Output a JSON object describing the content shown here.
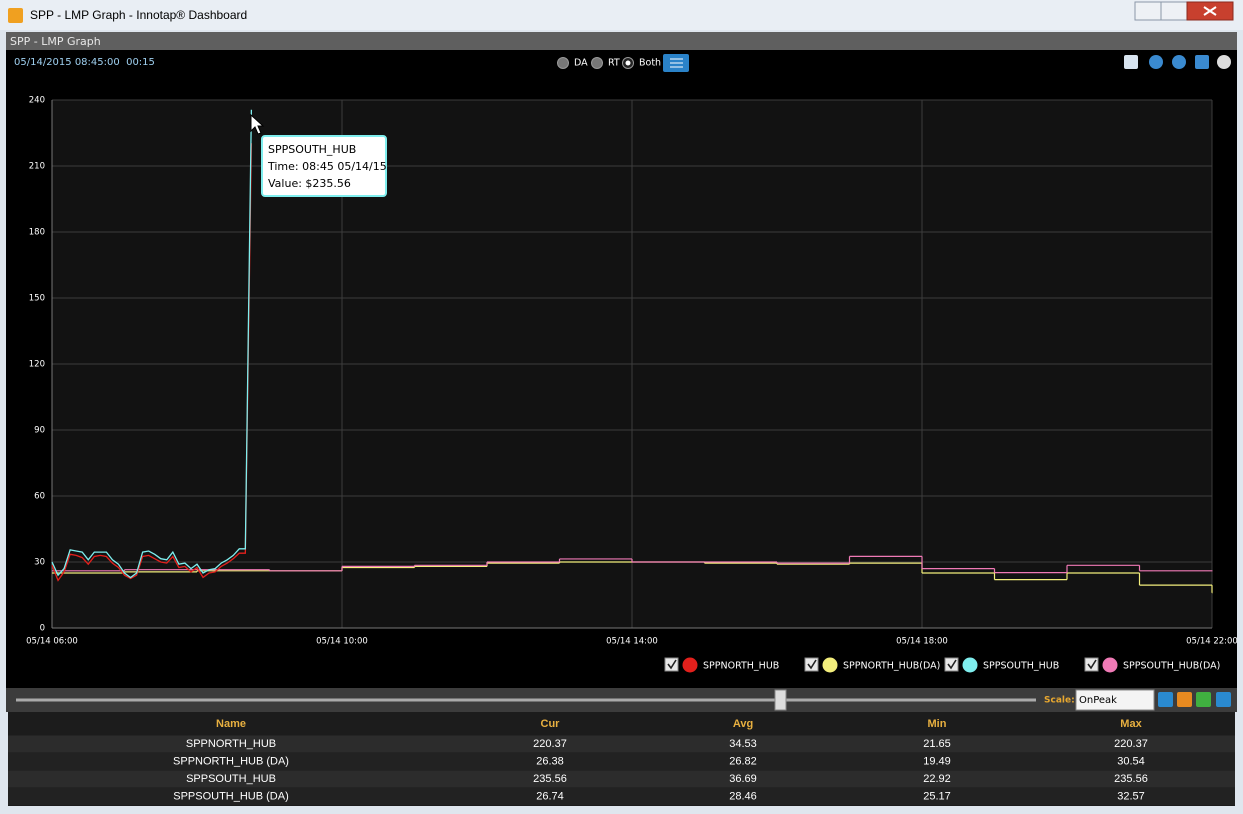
{
  "window": {
    "title": "SPP - LMP Graph - Innotap® Dashboard"
  },
  "panel": {
    "title": "SPP - LMP Graph",
    "timestamp": "05/14/2015 08:45:00  00:15",
    "modes": [
      "DA",
      "RT",
      "Both"
    ],
    "selected_mode": "Both"
  },
  "chart_data": {
    "type": "line",
    "xlim": [
      360,
      1320
    ],
    "xticks": [
      {
        "value": 360,
        "label": "05/14 06:00"
      },
      {
        "value": 600,
        "label": "05/14 10:00"
      },
      {
        "value": 840,
        "label": "05/14 14:00"
      },
      {
        "value": 1080,
        "label": "05/14 18:00"
      },
      {
        "value": 1320,
        "label": "05/14 22:00"
      }
    ],
    "ylim": [
      0,
      240
    ],
    "yticks": [
      0,
      30,
      60,
      90,
      120,
      150,
      180,
      210,
      240
    ],
    "grid": true,
    "series": [
      {
        "name": "SPPNORTH_HUB",
        "color": "#e3201c",
        "step": false,
        "x": [
          360,
          365,
          370,
          375,
          380,
          385,
          390,
          395,
          400,
          405,
          410,
          415,
          420,
          425,
          430,
          435,
          440,
          445,
          450,
          455,
          460,
          465,
          470,
          475,
          480,
          485,
          490,
          495,
          500,
          505,
          510,
          515,
          520,
          525
        ],
        "values": [
          28.5,
          21.65,
          25.5,
          33.5,
          33,
          32,
          29,
          32.5,
          33,
          32.5,
          29.5,
          27.5,
          24,
          22.5,
          24,
          32.5,
          33,
          31.5,
          30,
          29.5,
          32.5,
          27.5,
          28,
          25.5,
          27.5,
          23,
          25,
          25.5,
          28,
          29.5,
          31.5,
          34,
          34,
          220.37
        ]
      },
      {
        "name": "SPPNORTH_HUB(DA)",
        "color": "#f3ee7c",
        "step": true,
        "x": [
          360,
          420,
          480,
          540,
          600,
          660,
          720,
          780,
          840,
          900,
          960,
          1020,
          1080,
          1140,
          1200,
          1260,
          1320
        ],
        "values": [
          25,
          25.5,
          26,
          26,
          27.5,
          28,
          29.5,
          30,
          30,
          29.5,
          29,
          29.5,
          25,
          22,
          25,
          19.49,
          16
        ]
      },
      {
        "name": "SPPSOUTH_HUB",
        "color": "#7feeee",
        "step": false,
        "x": [
          360,
          365,
          370,
          375,
          380,
          385,
          390,
          395,
          400,
          405,
          410,
          415,
          420,
          425,
          430,
          435,
          440,
          445,
          450,
          455,
          460,
          465,
          470,
          475,
          480,
          485,
          490,
          495,
          500,
          505,
          510,
          515,
          520,
          525
        ],
        "values": [
          30,
          24,
          27,
          35.5,
          35,
          34.5,
          31,
          34.5,
          34.5,
          34.5,
          31,
          29,
          25,
          22.92,
          25,
          34.5,
          35,
          33.5,
          31.5,
          31,
          34.5,
          29,
          29.5,
          27,
          29,
          25,
          26.5,
          27,
          29.5,
          31,
          33,
          36,
          36,
          235.56
        ]
      },
      {
        "name": "SPPSOUTH_HUB(DA)",
        "color": "#f07ab6",
        "step": true,
        "x": [
          360,
          420,
          480,
          540,
          600,
          660,
          720,
          780,
          840,
          900,
          960,
          1020,
          1080,
          1140,
          1200,
          1260,
          1320
        ],
        "values": [
          26,
          26.5,
          26.5,
          26,
          28,
          28.5,
          30,
          31.4,
          30,
          30,
          29.5,
          32.57,
          27,
          25.17,
          28.5,
          26,
          26
        ]
      }
    ],
    "tooltip": {
      "title": "SPPSOUTH_HUB",
      "time": "Time: 08:45 05/14/15",
      "value": "Value: $235.56"
    }
  },
  "controls": {
    "scale_label": "Scale:",
    "scale_value": "OnPeak"
  },
  "table": {
    "columns": [
      "Name",
      "Cur",
      "Avg",
      "Min",
      "Max"
    ],
    "rows": [
      [
        "SPPNORTH_HUB",
        220.37,
        34.53,
        21.65,
        220.37
      ],
      [
        "SPPNORTH_HUB (DA)",
        26.38,
        26.82,
        19.49,
        30.54
      ],
      [
        "SPPSOUTH_HUB",
        235.56,
        36.69,
        22.92,
        235.56
      ],
      [
        "SPPSOUTH_HUB (DA)",
        26.74,
        28.46,
        25.17,
        32.57
      ]
    ]
  }
}
